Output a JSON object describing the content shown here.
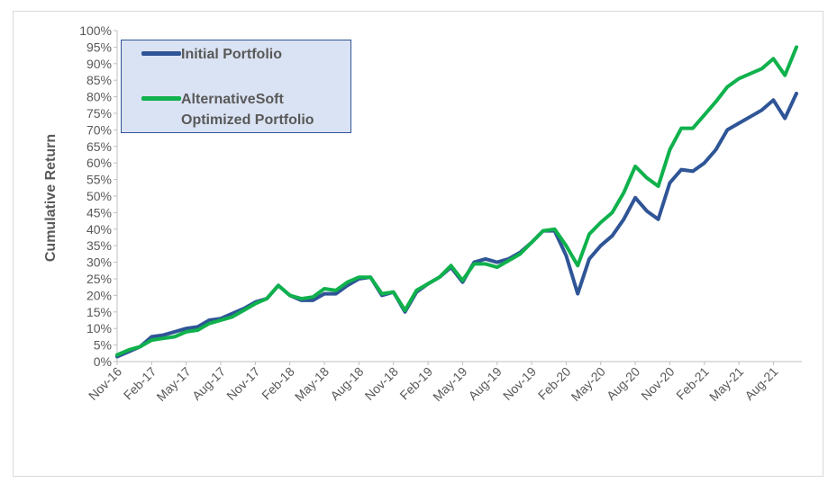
{
  "chart_data": {
    "type": "line",
    "title": "",
    "xlabel": "",
    "ylabel": "Cumulative Return",
    "ylim": [
      0,
      100
    ],
    "y_ticks": [
      "0%",
      "5%",
      "10%",
      "15%",
      "20%",
      "25%",
      "30%",
      "35%",
      "40%",
      "45%",
      "50%",
      "55%",
      "60%",
      "65%",
      "70%",
      "75%",
      "80%",
      "85%",
      "90%",
      "95%",
      "100%"
    ],
    "x_ticks": [
      "Nov-16",
      "Feb-17",
      "May-17",
      "Aug-17",
      "Nov-17",
      "Feb-18",
      "May-18",
      "Aug-18",
      "Nov-18",
      "Feb-19",
      "May-19",
      "Aug-19",
      "Nov-19",
      "Feb-20",
      "May-20",
      "Aug-20",
      "Nov-20",
      "Feb-21",
      "May-21",
      "Aug-21"
    ],
    "grid": false,
    "legend": "top-left",
    "series": [
      {
        "name": "Initial Portfolio",
        "color": "#2f5597",
        "values": [
          1.5,
          3,
          4.5,
          7.5,
          8,
          9,
          10,
          10.5,
          12.5,
          13,
          14.5,
          16,
          18,
          19,
          23,
          20,
          18.5,
          18.5,
          20.5,
          20.5,
          23,
          25,
          25.5,
          20,
          21,
          15,
          21,
          23.5,
          25.5,
          28.5,
          24,
          30,
          31,
          30,
          31,
          33,
          36,
          39.5,
          39.5,
          32,
          20.5,
          31,
          35,
          38,
          43,
          49.5,
          45.5,
          43,
          54,
          58,
          57.5,
          60,
          64,
          70,
          72,
          74,
          76,
          79,
          73.5,
          81
        ]
      },
      {
        "name": "AlternativeSoft Optimized Portfolio",
        "color": "#0fb14c",
        "values": [
          2,
          3.5,
          4.5,
          6.5,
          7,
          7.5,
          9,
          9.5,
          11.5,
          12.5,
          13.5,
          15.5,
          17.5,
          19,
          23,
          20,
          19,
          19.5,
          22,
          21.5,
          24,
          25.5,
          25.5,
          20.5,
          21,
          15.5,
          21.5,
          23.5,
          25.5,
          29,
          24.5,
          29.5,
          29.5,
          28.5,
          30.5,
          32.5,
          36,
          39.5,
          40,
          35,
          29,
          38.5,
          42,
          45,
          51,
          59,
          55.5,
          53,
          64,
          70.5,
          70.5,
          74.5,
          78.5,
          83,
          85.5,
          87,
          88.5,
          91.5,
          86.5,
          95
        ]
      }
    ]
  }
}
